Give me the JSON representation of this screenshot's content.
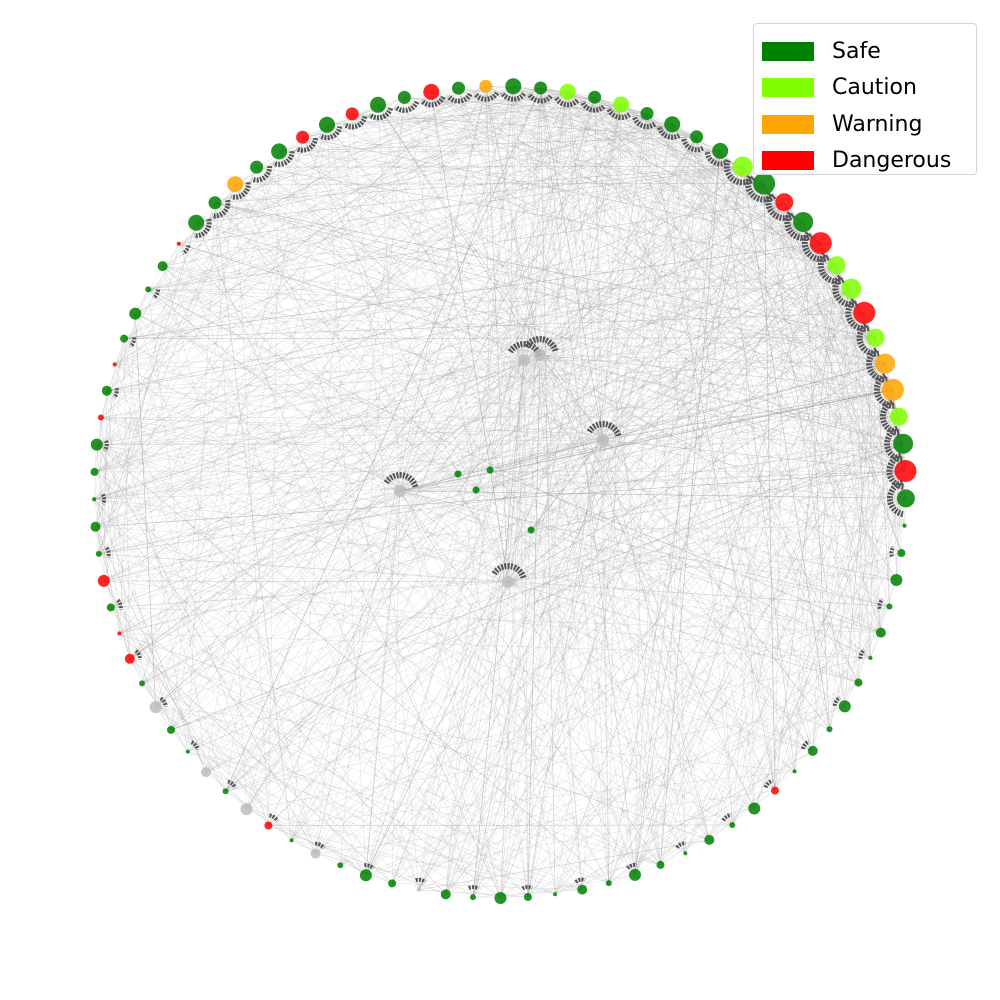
{
  "legend": {
    "items": [
      {
        "label": "Safe",
        "color": "#008000"
      },
      {
        "label": "Caution",
        "color": "#7fff00"
      },
      {
        "label": "Warning",
        "color": "#ffa500"
      },
      {
        "label": "Dangerous",
        "color": "#ff0000"
      }
    ]
  },
  "colors": {
    "safe": "#008000",
    "caution": "#7fff00",
    "warning": "#ffa500",
    "dangerous": "#ff0000",
    "unlabeled": "#bdbdbd",
    "edge": "#9a9a9a",
    "arrow": "#555555"
  },
  "graph": {
    "layout": "circular with inner hub nodes",
    "outer_nodes": [
      "warning",
      "safe",
      "safe",
      "caution",
      "safe",
      "caution",
      "safe",
      "safe",
      "safe",
      "safe",
      "caution",
      "safe",
      "dangerous",
      "safe",
      "dangerous",
      "caution",
      "caution",
      "dangerous",
      "caution",
      "warning",
      "warning",
      "caution",
      "safe",
      "dangerous",
      "safe",
      "safe",
      "safe",
      "safe",
      "safe",
      "safe",
      "safe",
      "safe",
      "safe",
      "safe",
      "safe",
      "safe",
      "dangerous",
      "safe",
      "safe",
      "safe",
      "safe",
      "safe",
      "safe",
      "safe",
      "safe",
      "safe",
      "safe",
      "safe",
      "safe",
      "safe",
      "unlabeled",
      "safe",
      "safe",
      "safe",
      "unlabeled",
      "safe",
      "dangerous",
      "unlabeled",
      "safe",
      "unlabeled",
      "safe",
      "safe",
      "unlabeled",
      "safe",
      "dangerous",
      "dangerous",
      "safe",
      "dangerous",
      "safe",
      "safe",
      "safe",
      "safe",
      "safe",
      "dangerous",
      "safe",
      "dangerous",
      "safe",
      "safe",
      "safe",
      "safe",
      "dangerous",
      "safe",
      "safe",
      "warning",
      "safe",
      "safe",
      "dangerous",
      "safe",
      "dangerous",
      "safe",
      "safe",
      "dangerous",
      "safe"
    ],
    "inner_nodes": [
      "unlabeled",
      "unlabeled",
      "unlabeled",
      "unlabeled",
      "unlabeled",
      "safe",
      "safe",
      "safe",
      "safe"
    ]
  }
}
